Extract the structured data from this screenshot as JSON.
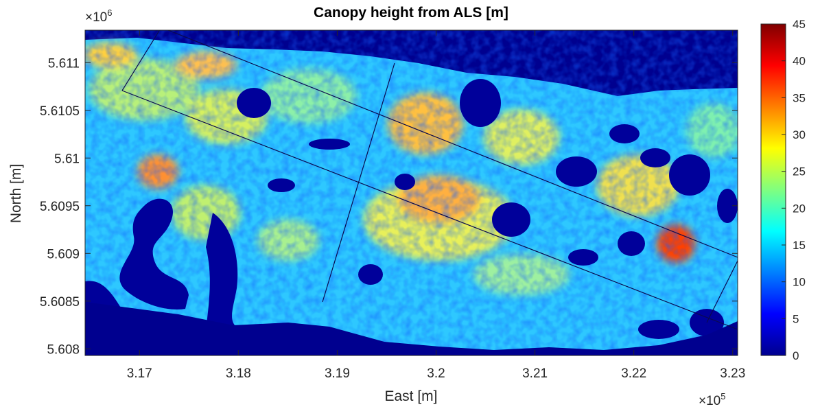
{
  "chart_data": {
    "type": "heatmap",
    "title": "Canopy height from ALS [m]",
    "xlabel": "East [m]",
    "ylabel": "North [m]",
    "x_ticks": [
      {
        "value": 317000,
        "label": "3.17"
      },
      {
        "value": 318000,
        "label": "3.18"
      },
      {
        "value": 319000,
        "label": "3.19"
      },
      {
        "value": 320000,
        "label": "3.2"
      },
      {
        "value": 321000,
        "label": "3.21"
      },
      {
        "value": 322000,
        "label": "3.22"
      },
      {
        "value": 323000,
        "label": "3.23"
      }
    ],
    "y_ticks": [
      {
        "value": 5608000,
        "label": "5.608"
      },
      {
        "value": 5608500,
        "label": "5.6085"
      },
      {
        "value": 5609000,
        "label": "5.609"
      },
      {
        "value": 5609500,
        "label": "5.6095"
      },
      {
        "value": 5610000,
        "label": "5.61"
      },
      {
        "value": 5610500,
        "label": "5.6105"
      },
      {
        "value": 5611000,
        "label": "5.611"
      }
    ],
    "x_exponent": {
      "base": "×10",
      "power": "5"
    },
    "y_exponent": {
      "base": "×10",
      "power": "6"
    },
    "xlim": [
      316450,
      323050
    ],
    "ylim": [
      5607930,
      5611340
    ],
    "colorbar": {
      "colormap": "jet",
      "range": [
        0,
        45
      ],
      "ticks": [
        "0",
        "5",
        "10",
        "15",
        "20",
        "25",
        "30",
        "35",
        "40",
        "45"
      ]
    },
    "value_range_m": [
      0,
      45
    ],
    "grid": false
  },
  "colors": {
    "no_data": "#00008f",
    "axis": "#262626"
  }
}
